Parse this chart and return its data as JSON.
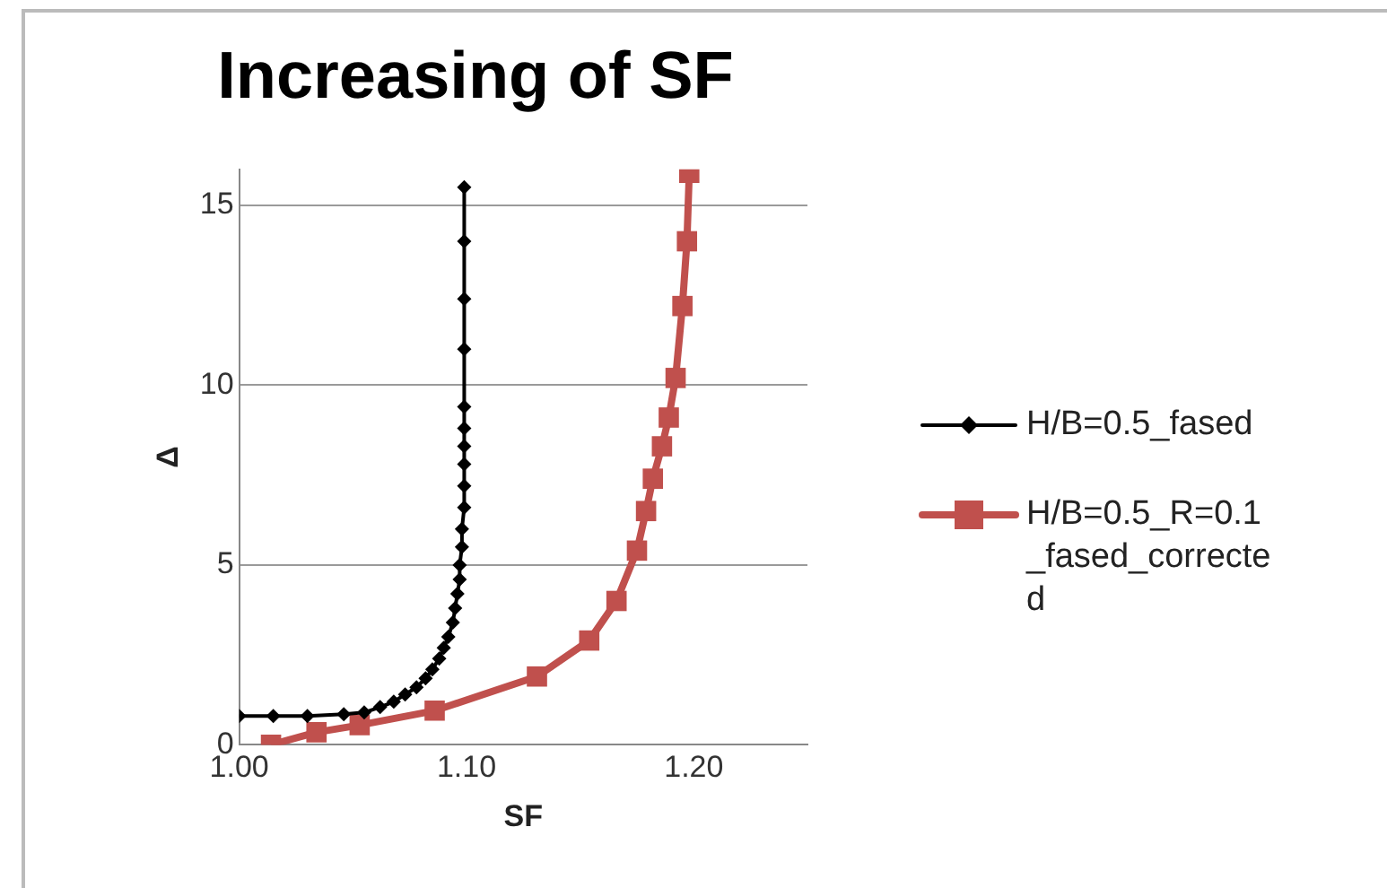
{
  "chart_data": {
    "type": "line",
    "title": "Increasing of SF",
    "xlabel": "SF",
    "ylabel": "Δ",
    "xlim": [
      1.0,
      1.25
    ],
    "xticks": [
      {
        "value": 1.0,
        "label": "1.00"
      },
      {
        "value": 1.1,
        "label": "1.10"
      },
      {
        "value": 1.2,
        "label": "1.20"
      }
    ],
    "ylim": [
      0,
      16
    ],
    "yticks": [
      0,
      5,
      10,
      15
    ],
    "grid": "y",
    "legend": "right",
    "series": [
      {
        "name": "H/B=0.5_fased",
        "color": "#000000",
        "marker": "diamond",
        "x": [
          1.0,
          1.015,
          1.03,
          1.046,
          1.055,
          1.062,
          1.068,
          1.073,
          1.078,
          1.082,
          1.085,
          1.088,
          1.09,
          1.092,
          1.094,
          1.095,
          1.096,
          1.097,
          1.097,
          1.098,
          1.098,
          1.099,
          1.099,
          1.099,
          1.099,
          1.099,
          1.099,
          1.099,
          1.099,
          1.099,
          1.099
        ],
        "values": [
          0.8,
          0.8,
          0.8,
          0.85,
          0.9,
          1.05,
          1.2,
          1.4,
          1.6,
          1.85,
          2.1,
          2.4,
          2.7,
          3.0,
          3.4,
          3.8,
          4.2,
          4.6,
          5.0,
          5.5,
          6.0,
          6.6,
          7.2,
          7.8,
          8.3,
          8.8,
          9.4,
          11.0,
          12.4,
          14.0,
          15.5
        ]
      },
      {
        "name": "H/B=0.5_R=0.1_fased_corrected",
        "color": "#c0504d",
        "marker": "square",
        "x": [
          1.014,
          1.034,
          1.053,
          1.086,
          1.131,
          1.154,
          1.166,
          1.175,
          1.179,
          1.182,
          1.186,
          1.189,
          1.192,
          1.195,
          1.197,
          1.198
        ],
        "values": [
          0,
          0.35,
          0.55,
          0.95,
          1.9,
          2.9,
          4.0,
          5.4,
          6.5,
          7.4,
          8.3,
          9.1,
          10.2,
          12.2,
          14.0,
          15.9
        ]
      }
    ]
  }
}
